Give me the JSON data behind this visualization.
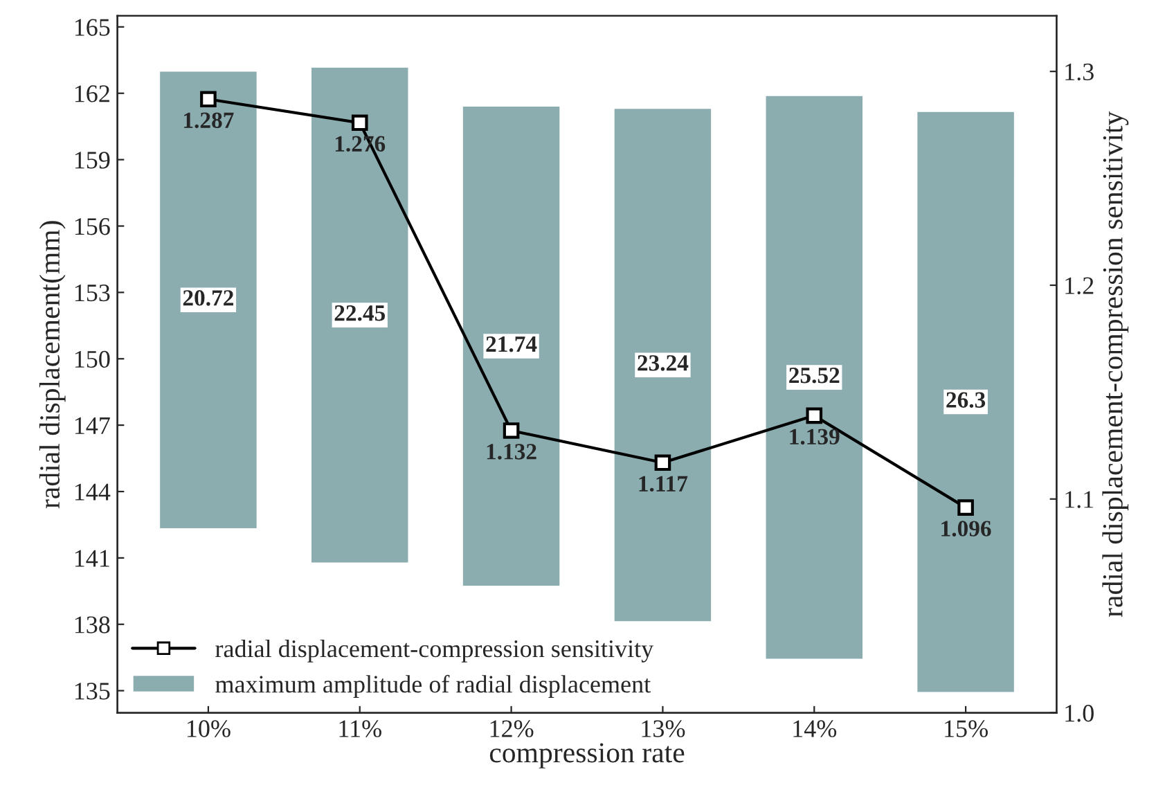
{
  "chart_data": {
    "type": "bar",
    "xlabel": "compression rate",
    "ylabel": "radial displacement(mm)",
    "y2label": "radial displacement-compression sensitivity",
    "categories": [
      "10%",
      "11%",
      "12%",
      "13%",
      "14%",
      "15%"
    ],
    "series": [
      {
        "name": "maximum amplitude of radial displacement",
        "color": "#8cadb0",
        "base": [
          142.3,
          140.75,
          139.7,
          138.1,
          136.4,
          134.9
        ],
        "values": [
          20.72,
          22.45,
          21.74,
          23.24,
          25.52,
          26.3
        ]
      },
      {
        "name": "radial displacement-compression sensitivity",
        "type": "line",
        "axis": "y2",
        "color": "#000000",
        "marker": "square",
        "values": [
          1.287,
          1.276,
          1.132,
          1.117,
          1.139,
          1.096
        ]
      }
    ],
    "data_labels": true,
    "ylim": [
      134,
      165.5
    ],
    "yticks": [
      135,
      138,
      141,
      144,
      147,
      150,
      153,
      156,
      159,
      162,
      165
    ],
    "y2lim": [
      1.0,
      1.326
    ],
    "y2ticks": [
      {
        "value": 1.0,
        "label": "1.0"
      },
      1.1,
      1.2,
      1.3
    ],
    "grid": false,
    "legend": "bottom left"
  }
}
